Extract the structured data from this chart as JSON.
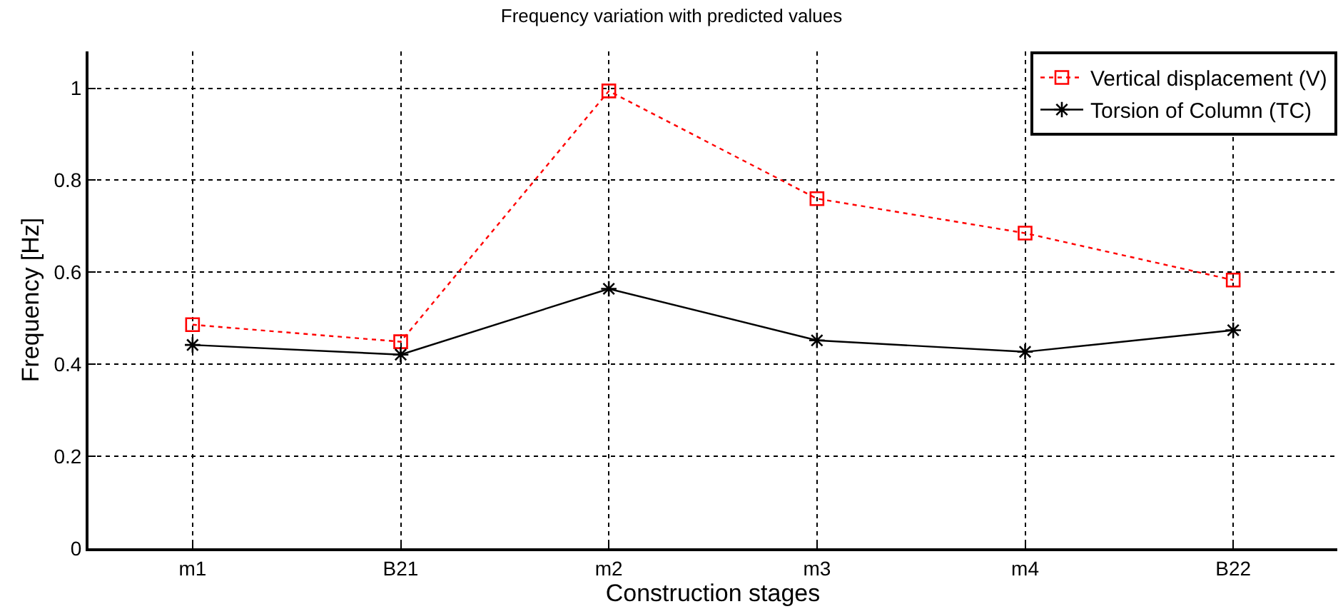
{
  "chart_data": {
    "type": "line",
    "title": "Frequency variation with predicted values",
    "xlabel": "Construction stages",
    "ylabel": "Frequency [Hz]",
    "categories": [
      "m1",
      "B21",
      "m2",
      "m3",
      "m4",
      "B22"
    ],
    "series": [
      {
        "name": "Vertical displacement (V)",
        "color": "#ff0000",
        "marker": "square",
        "line_style": "dotted",
        "values": [
          0.486,
          0.449,
          0.994,
          0.76,
          0.685,
          0.583
        ]
      },
      {
        "name": "Torsion of Column (TC)",
        "color": "#000000",
        "marker": "cross",
        "line_style": "solid",
        "values": [
          0.442,
          0.421,
          0.564,
          0.452,
          0.427,
          0.474
        ]
      }
    ],
    "ylim": [
      0,
      1.08
    ],
    "yticks": [
      0,
      0.2,
      0.4,
      0.6,
      0.8,
      1
    ],
    "grid": true,
    "legend": "top right"
  }
}
